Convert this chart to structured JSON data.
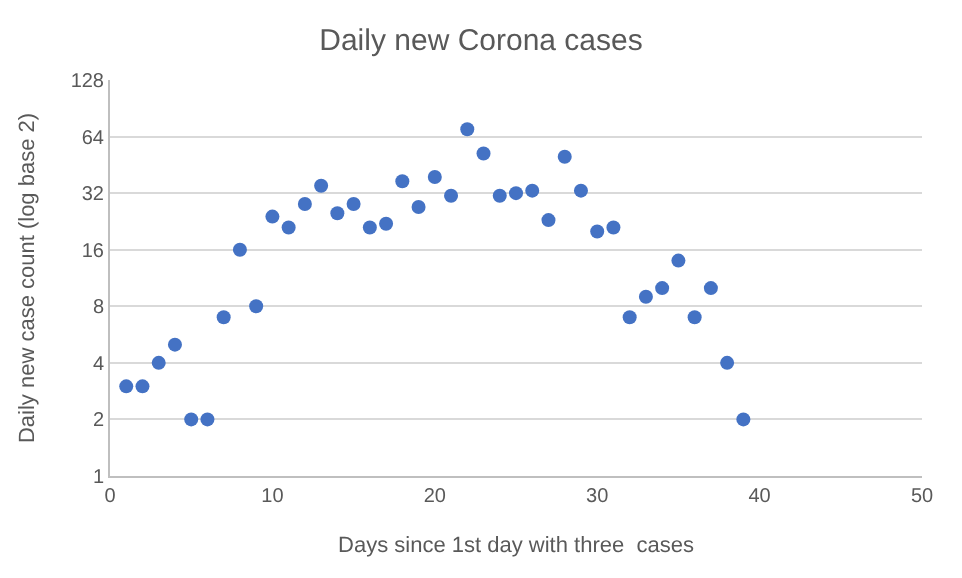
{
  "chart_data": {
    "type": "scatter",
    "title": "Daily new Corona cases",
    "xlabel": "Days since 1st day with three  cases",
    "ylabel": "Daily new case count (log base 2)",
    "x": [
      1,
      2,
      3,
      4,
      5,
      6,
      7,
      8,
      9,
      10,
      11,
      12,
      13,
      14,
      15,
      16,
      17,
      18,
      19,
      20,
      21,
      22,
      23,
      24,
      25,
      26,
      27,
      28,
      29,
      30,
      31,
      32,
      33,
      34,
      35,
      36,
      37,
      38,
      39
    ],
    "series": [
      {
        "color": "#4472c4",
        "values": [
          3,
          3,
          4,
          5,
          2,
          2,
          7,
          16,
          8,
          24,
          21,
          28,
          35,
          25,
          28,
          21,
          22,
          37,
          27,
          39,
          31,
          70,
          52,
          31,
          32,
          33,
          23,
          50,
          33,
          20,
          21,
          7,
          9,
          10,
          14,
          7,
          10,
          4,
          2
        ]
      }
    ],
    "xlim": [
      0,
      50
    ],
    "xticks": [
      0,
      10,
      20,
      30,
      40,
      50
    ],
    "ylim": [
      1,
      128
    ],
    "yticks": [
      1,
      2,
      4,
      8,
      16,
      32,
      64,
      128
    ],
    "log": "y",
    "grid": "y",
    "marker": "circle",
    "legend": false
  }
}
